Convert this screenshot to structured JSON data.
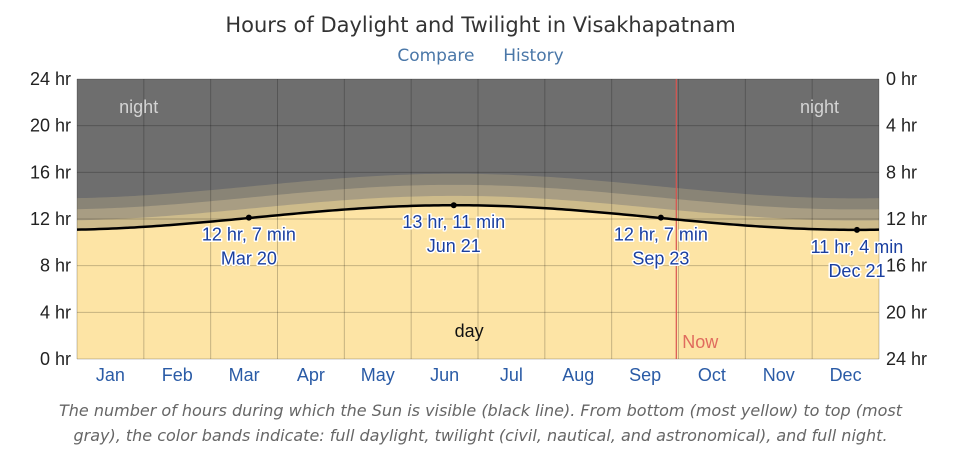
{
  "title": "Hours of Daylight and Twilight in Visakhapatnam",
  "links": {
    "compare": "Compare",
    "history": "History"
  },
  "caption": "The number of hours during which the Sun is visible (black line). From bottom (most yellow) to top (most gray), the color bands indicate: full daylight, twilight (civil, nautical, and astronomical), and full night.",
  "colors": {
    "night": "#6e6e6e",
    "astronomical": "#898476",
    "nautical": "#a89d83",
    "civil": "#cdbb8b",
    "day": "#fde4a5",
    "daylight_line": "#000000",
    "now_line": "#d9534f",
    "month_label": "#2a5ba6",
    "annotation": "#1a3fa0"
  },
  "chart_data": {
    "type": "area",
    "title": "Hours of Daylight and Twilight in Visakhapatnam",
    "x": {
      "categories": [
        "Jan",
        "Feb",
        "Mar",
        "Apr",
        "May",
        "Jun",
        "Jul",
        "Aug",
        "Sep",
        "Oct",
        "Nov",
        "Dec"
      ],
      "day_range": [
        1,
        365
      ]
    },
    "y_left": {
      "ticks": [
        "0 hr",
        "4 hr",
        "8 hr",
        "12 hr",
        "16 hr",
        "20 hr",
        "24 hr"
      ],
      "range": [
        0,
        24
      ]
    },
    "y_right": {
      "ticks": [
        "24 hr",
        "20 hr",
        "16 hr",
        "12 hr",
        "8 hr",
        "4 hr",
        "0 hr"
      ]
    },
    "grid": true,
    "daylight_hours": {
      "min": 11.07,
      "max": 13.18,
      "min_day": 355
    },
    "twilight_extra_hours": {
      "civil": 0.8,
      "nautical": 1.75,
      "astronomical": 2.7
    },
    "band_labels": {
      "night_left": "night",
      "night_right": "night",
      "day": "day"
    },
    "now": {
      "label": "Now",
      "day": 273
    },
    "annotations": [
      {
        "day": 79,
        "hours": 12.12,
        "line1": "12 hr, 7 min",
        "line2": "Mar 20"
      },
      {
        "day": 172,
        "hours": 13.18,
        "line1": "13 hr, 11 min",
        "line2": "Jun 21"
      },
      {
        "day": 266,
        "hours": 12.12,
        "line1": "12 hr, 7 min",
        "line2": "Sep 23"
      },
      {
        "day": 355,
        "hours": 11.07,
        "line1": "11 hr, 4 min",
        "line2": "Dec 21"
      }
    ]
  }
}
